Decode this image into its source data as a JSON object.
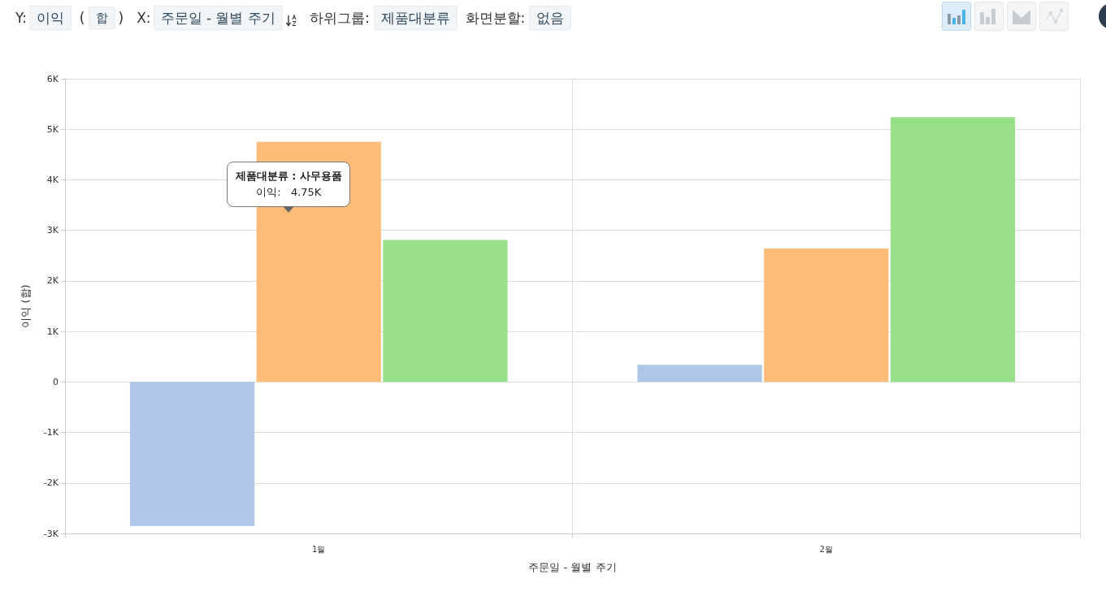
{
  "chart_data": {
    "type": "bar",
    "xlabel": "주문일 - 월별 주기",
    "ylabel": "이익 (합)",
    "categories": [
      "1월",
      "2월"
    ],
    "series": [
      {
        "color": "#aec7e8",
        "values": [
          -2850,
          340
        ]
      },
      {
        "color": "#ffbb78",
        "values": [
          4750,
          2640
        ]
      },
      {
        "color": "#98df8a",
        "values": [
          2810,
          5240
        ]
      }
    ],
    "ylim": [
      -3000,
      6000
    ],
    "yticks": [
      {
        "value": -3000,
        "label": "-3K"
      },
      {
        "value": -2000,
        "label": "-2K"
      },
      {
        "value": -1000,
        "label": "-1K"
      },
      0,
      {
        "value": 1000,
        "label": "1K"
      },
      {
        "value": 2000,
        "label": "2K"
      },
      {
        "value": 3000,
        "label": "3K"
      },
      {
        "value": 4000,
        "label": "4K"
      },
      {
        "value": 5000,
        "label": "5K"
      },
      {
        "value": 6000,
        "label": "6K"
      }
    ],
    "grid": true,
    "annotations": [
      "Y:",
      "이익",
      "(",
      "합",
      ")",
      "X:",
      "주문일 - 월별 주기",
      "하위그룹:",
      "제품대분류",
      "화면분할:",
      "없음",
      {
        "text": "제품대분류 : 사무용품\n이익:   4.75K",
        "x": "1월",
        "y": 4750
      }
    ]
  }
}
